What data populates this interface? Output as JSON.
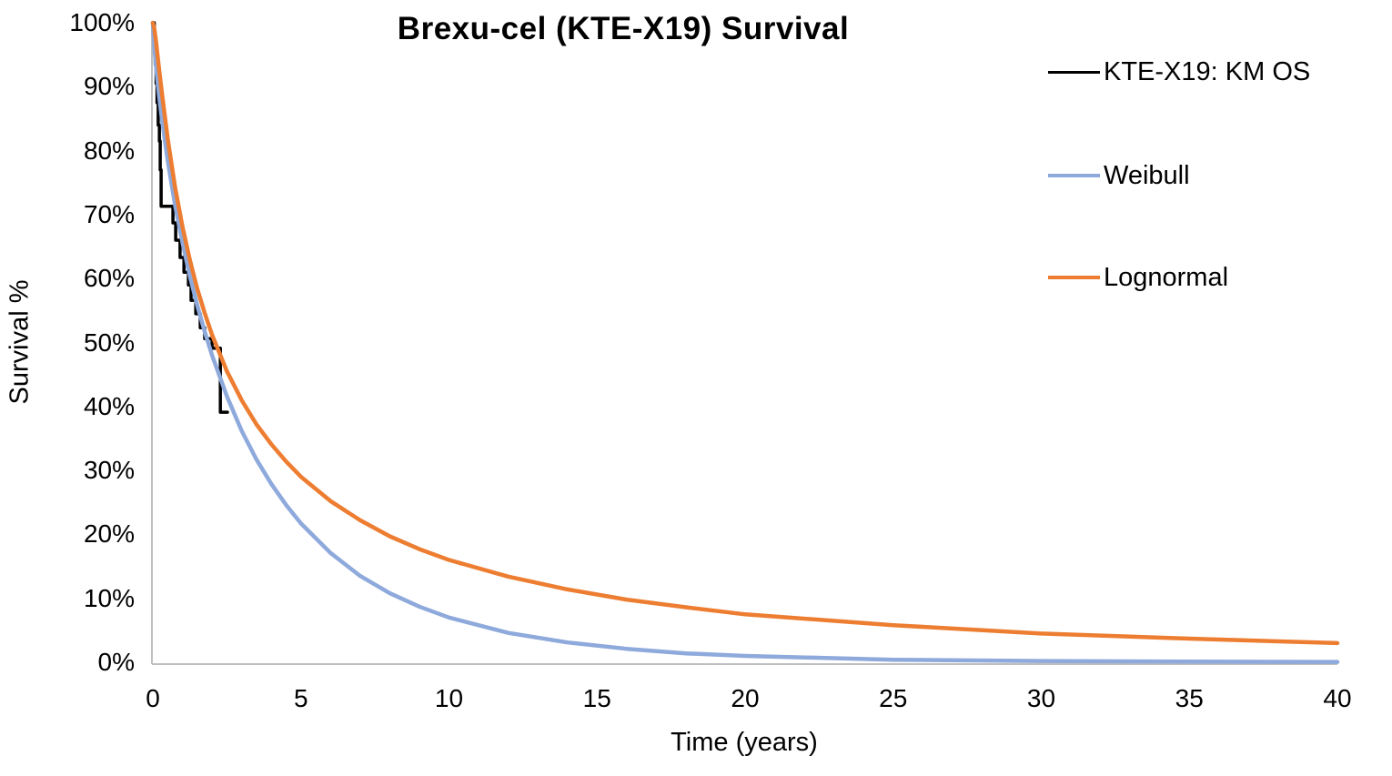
{
  "title": "Brexu-cel (KTE-X19) Survival",
  "colors": {
    "km": "#000000",
    "weibull": "#8EA9DB",
    "lognormal": "#ED7D31",
    "axis_line": "#BFBFBF",
    "text": "#000000",
    "background": "#FFFFFF"
  },
  "legend": {
    "items": [
      {
        "label": "KTE-X19: KM OS",
        "color": "#000000"
      },
      {
        "label": "Weibull",
        "color": "#8EA9DB"
      },
      {
        "label": "Lognormal",
        "color": "#ED7D31"
      }
    ]
  },
  "chart_data": {
    "type": "line",
    "title": "Brexu-cel (KTE-X19) Survival",
    "xlabel": "Time (years)",
    "ylabel": "Survival %",
    "xlim": [
      0,
      40
    ],
    "ylim": [
      0,
      100
    ],
    "x_ticks": [
      0,
      5,
      10,
      15,
      20,
      25,
      30,
      35,
      40
    ],
    "y_ticks": [
      100,
      90,
      80,
      70,
      60,
      50,
      40,
      30,
      20,
      10,
      0
    ],
    "y_tick_suffix": "%",
    "grid": false,
    "legend_position": "right-top",
    "series": [
      {
        "name": "KTE-X19: KM OS",
        "type": "step",
        "color": "#000000",
        "x": [
          0,
          0.05,
          0.08,
          0.11,
          0.14,
          0.18,
          0.22,
          0.25,
          0.28,
          0.68,
          0.77,
          0.92,
          1.05,
          1.2,
          1.29,
          1.45,
          1.6,
          1.75,
          2.0,
          2.28,
          2.52
        ],
        "y": [
          100,
          96.5,
          93.5,
          90.5,
          87.5,
          84,
          81.5,
          77,
          71.3,
          68.7,
          66,
          63.3,
          61,
          59,
          56.6,
          54.5,
          52.3,
          50.6,
          49.1,
          39.1,
          39.1
        ]
      },
      {
        "name": "Weibull",
        "type": "line",
        "color": "#8EA9DB",
        "x": [
          0,
          0.05,
          0.1,
          0.2,
          0.3,
          0.5,
          0.75,
          1,
          1.25,
          1.5,
          1.75,
          2,
          2.5,
          3,
          3.5,
          4,
          4.5,
          5,
          6,
          7,
          8,
          9,
          10,
          12,
          14,
          16,
          18,
          20,
          25,
          30,
          35,
          40
        ],
        "y": [
          100,
          96.2,
          93.5,
          89.0,
          85.1,
          78.5,
          71.5,
          65.6,
          60.4,
          55.8,
          51.7,
          48.0,
          41.6,
          36.2,
          31.7,
          27.9,
          24.6,
          21.7,
          17.1,
          13.5,
          10.8,
          8.7,
          7.0,
          4.6,
          3.1,
          2.1,
          1.4,
          1.0,
          0.4,
          0.2,
          0.1,
          0.05
        ]
      },
      {
        "name": "Lognormal",
        "type": "line",
        "color": "#ED7D31",
        "x": [
          0,
          0.05,
          0.1,
          0.2,
          0.3,
          0.5,
          0.75,
          1,
          1.25,
          1.5,
          1.75,
          2,
          2.5,
          3,
          3.5,
          4,
          4.5,
          5,
          6,
          7,
          8,
          9,
          10,
          12,
          14,
          16,
          18,
          20,
          25,
          30,
          35,
          40
        ],
        "y": [
          100,
          99.1,
          97.3,
          93.2,
          89.2,
          81.9,
          74.3,
          68.1,
          62.9,
          58.4,
          54.6,
          51.2,
          45.5,
          41.0,
          37.2,
          34.1,
          31.4,
          29.0,
          25.2,
          22.2,
          19.7,
          17.7,
          16.0,
          13.4,
          11.4,
          9.8,
          8.6,
          7.5,
          5.8,
          4.5,
          3.7,
          3.0
        ]
      }
    ]
  }
}
